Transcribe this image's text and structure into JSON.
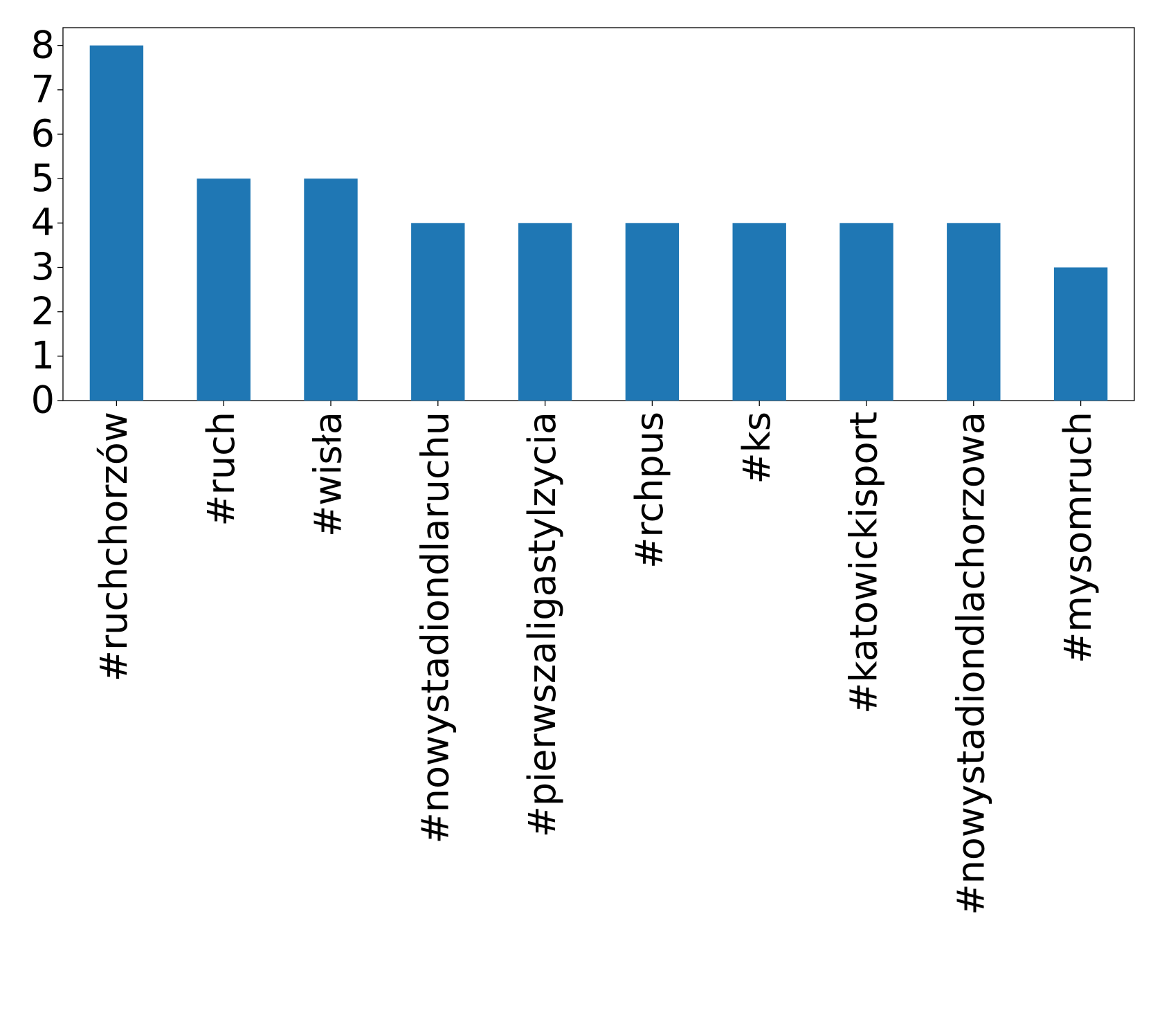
{
  "chart_data": {
    "type": "bar",
    "categories": [
      "#ruchchorzów",
      "#ruch",
      "#wisła",
      "#nowystadiondlaruchu",
      "#pierwszaligastylzycia",
      "#rchpus",
      "#ks",
      "#katowickisport",
      "#nowystadiondlachorzowa",
      "#mysomruch"
    ],
    "values": [
      8,
      5,
      5,
      4,
      4,
      4,
      4,
      4,
      4,
      3
    ],
    "color": "#1f77b4",
    "ylim": [
      0,
      8.4
    ],
    "yticks": [
      0,
      1,
      2,
      3,
      4,
      5,
      6,
      7,
      8
    ],
    "grid": false
  }
}
